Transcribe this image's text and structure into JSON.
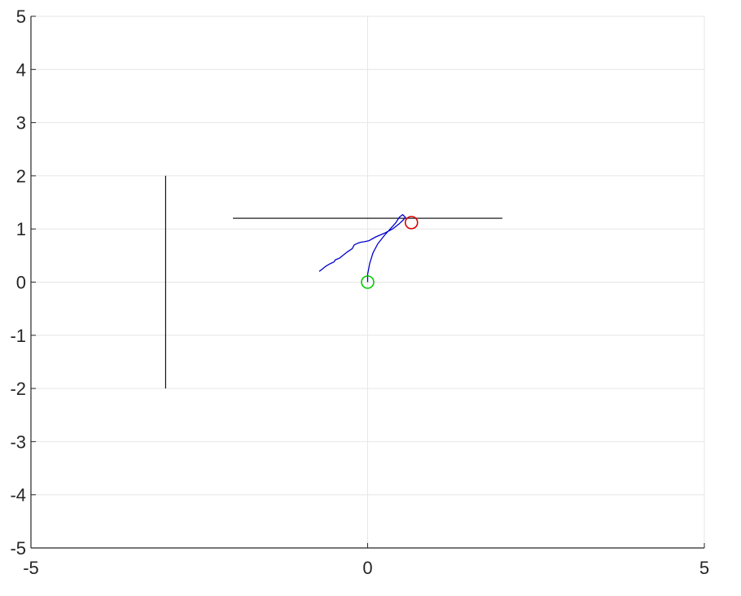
{
  "chart_data": {
    "type": "line",
    "title": "",
    "xlabel": "",
    "ylabel": "",
    "xlim": [
      -5,
      5
    ],
    "ylim": [
      -5,
      5
    ],
    "grid": true,
    "x_ticks": [
      {
        "value": -5,
        "label": "-5"
      },
      {
        "value": 0,
        "label": "0"
      },
      {
        "value": 5,
        "label": "5"
      }
    ],
    "y_ticks": [
      {
        "value": 5,
        "label": "5"
      },
      {
        "value": 4,
        "label": "4"
      },
      {
        "value": 3,
        "label": "3"
      },
      {
        "value": 2,
        "label": "2"
      },
      {
        "value": 1,
        "label": "1"
      },
      {
        "value": 0,
        "label": "0"
      },
      {
        "value": -1,
        "label": "-1"
      },
      {
        "value": -2,
        "label": "-2"
      },
      {
        "value": -3,
        "label": "-3"
      },
      {
        "value": -4,
        "label": "-4"
      },
      {
        "value": -5,
        "label": "-5"
      }
    ],
    "x_grid": [
      -5,
      0,
      5
    ],
    "y_grid": [
      -5,
      -4,
      -3,
      -2,
      -1,
      0,
      1,
      2,
      3,
      4,
      5
    ],
    "series": [
      {
        "kind": "segment",
        "color": "#000000",
        "points": [
          [
            -3.0,
            -2.0
          ],
          [
            -3.0,
            2.0
          ]
        ]
      },
      {
        "kind": "segment",
        "color": "#000000",
        "points": [
          [
            -2.0,
            1.2
          ],
          [
            2.0,
            1.2
          ]
        ]
      },
      {
        "kind": "path",
        "color": "#0000cc",
        "points": [
          [
            0.0,
            0.0
          ],
          [
            0.0,
            0.15
          ],
          [
            0.03,
            0.35
          ],
          [
            0.08,
            0.55
          ],
          [
            0.15,
            0.72
          ],
          [
            0.25,
            0.88
          ],
          [
            0.35,
            1.02
          ],
          [
            0.42,
            1.12
          ],
          [
            0.47,
            1.22
          ],
          [
            0.52,
            1.27
          ],
          [
            0.56,
            1.22
          ],
          [
            0.53,
            1.17
          ],
          [
            0.47,
            1.1
          ],
          [
            0.37,
            1.0
          ],
          [
            0.25,
            0.92
          ],
          [
            0.12,
            0.85
          ],
          [
            0.02,
            0.78
          ],
          [
            -0.05,
            0.76
          ],
          [
            -0.1,
            0.75
          ],
          [
            -0.15,
            0.73
          ],
          [
            -0.2,
            0.7
          ],
          [
            -0.23,
            0.63
          ],
          [
            -0.3,
            0.57
          ],
          [
            -0.35,
            0.52
          ],
          [
            -0.42,
            0.45
          ],
          [
            -0.48,
            0.42
          ],
          [
            -0.5,
            0.38
          ],
          [
            -0.55,
            0.35
          ],
          [
            -0.62,
            0.3
          ],
          [
            -0.67,
            0.25
          ],
          [
            -0.72,
            0.2
          ]
        ]
      }
    ],
    "markers": [
      {
        "kind": "circle",
        "x": 0.0,
        "y": 0.0,
        "color": "#00cc00"
      },
      {
        "kind": "circle",
        "x": 0.65,
        "y": 1.12,
        "color": "#dd0000"
      }
    ]
  }
}
